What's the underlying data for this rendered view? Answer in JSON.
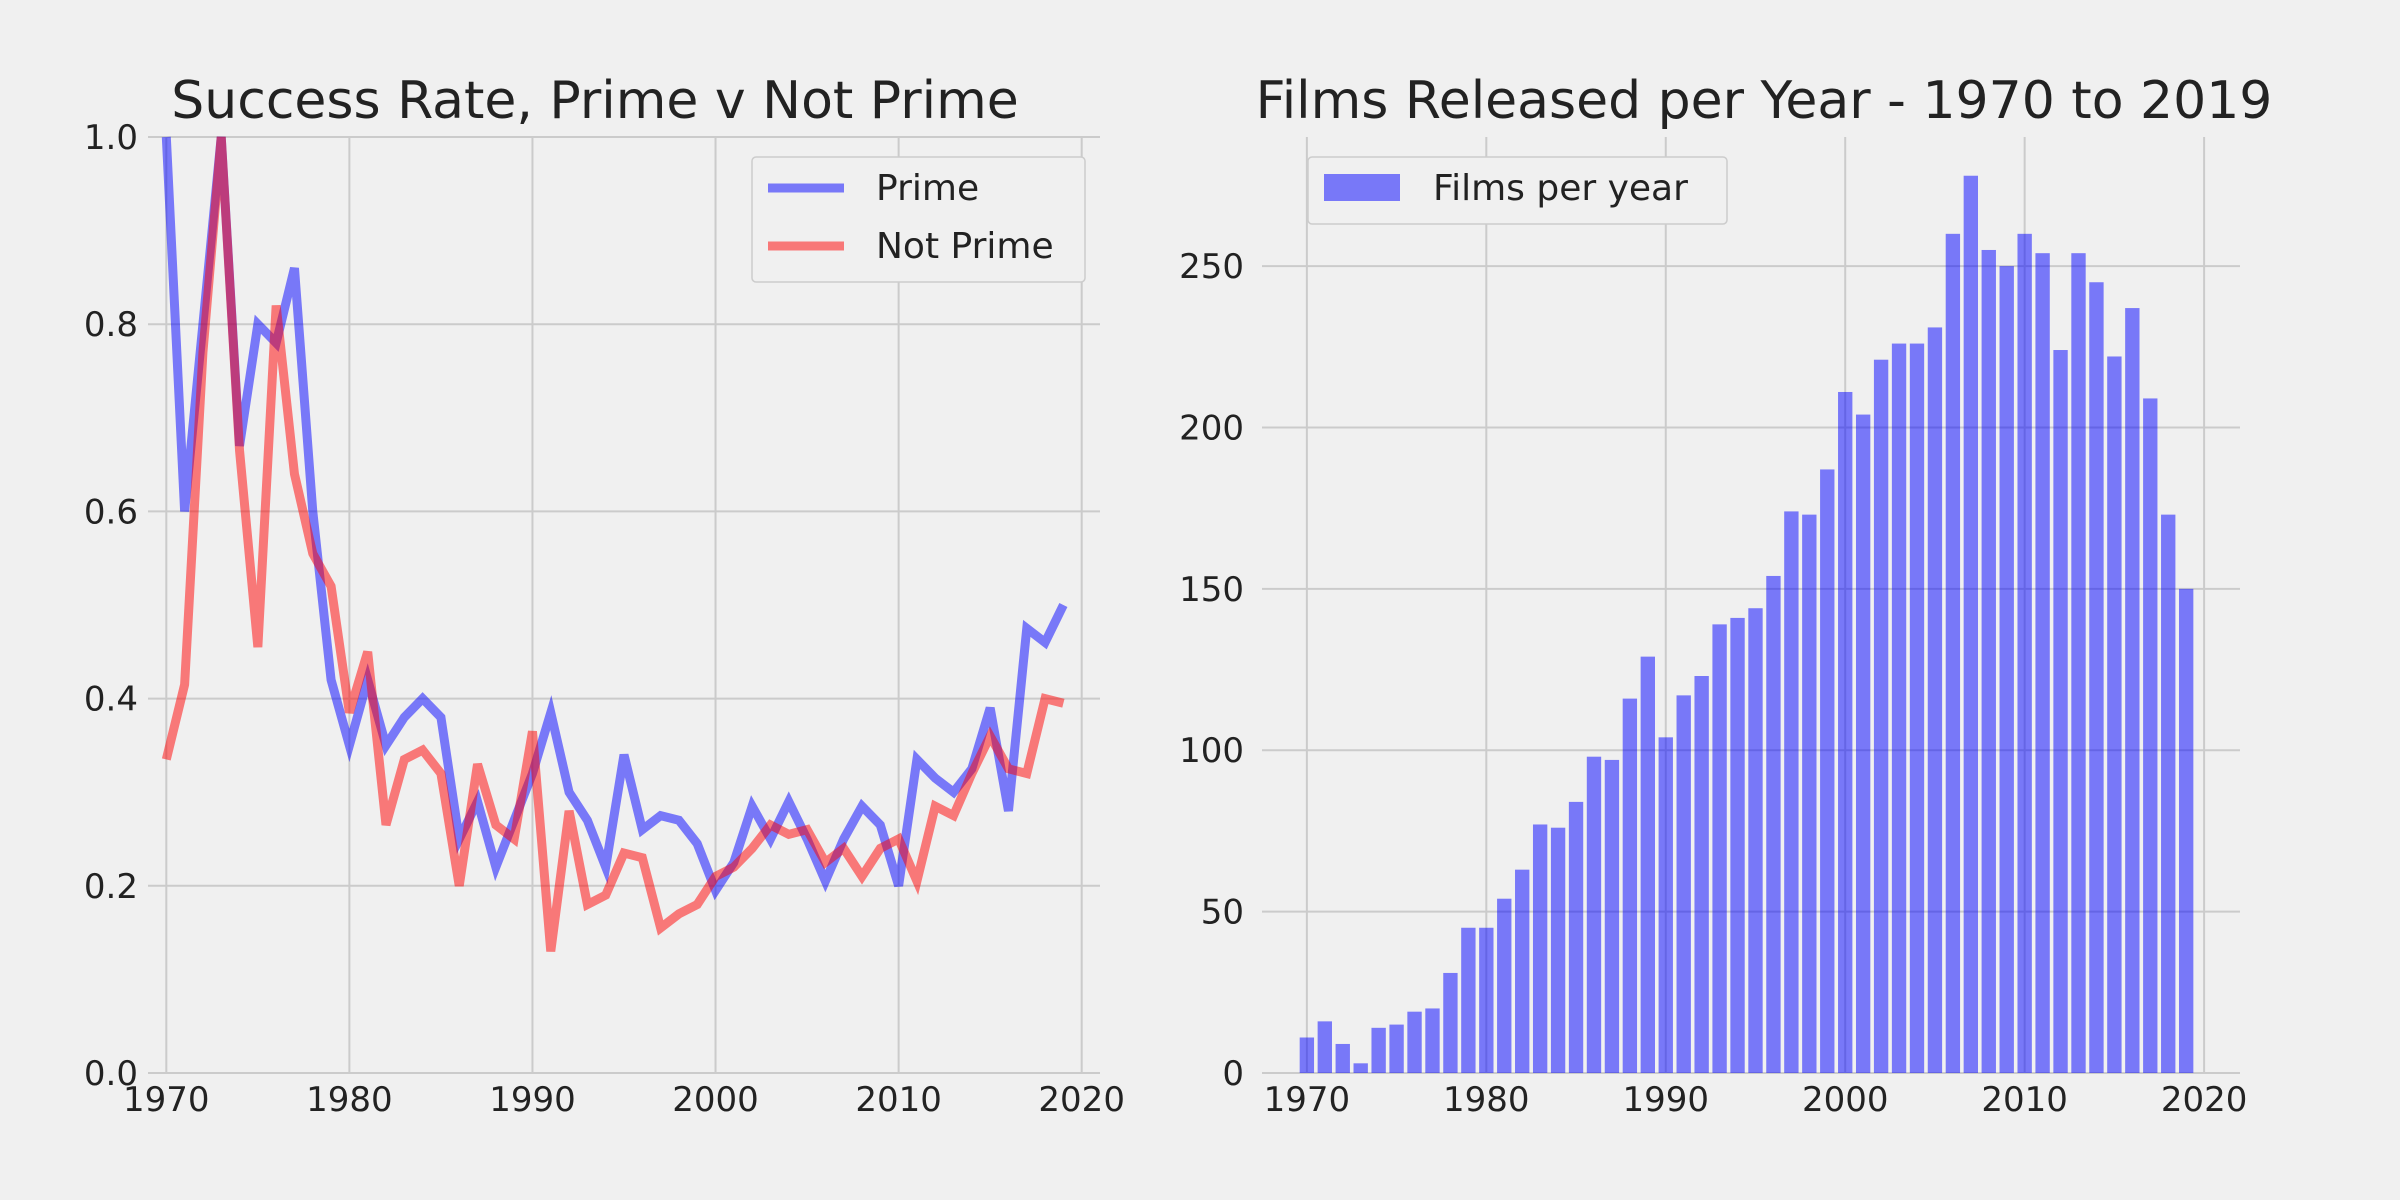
{
  "chart_data": [
    {
      "type": "line",
      "title": "Success Rate, Prime v Not Prime",
      "xlim": [
        1969,
        2021
      ],
      "ylim": [
        0.0,
        1.0
      ],
      "x_ticks": [
        1970,
        1980,
        1990,
        2000,
        2010,
        2020
      ],
      "y_ticks": [
        0.0,
        0.2,
        0.4,
        0.6,
        0.8,
        1.0
      ],
      "y_tick_labels": [
        "0.0",
        "0.2",
        "0.4",
        "0.6",
        "0.8",
        "1.0"
      ],
      "grid": true,
      "legend_position": "top-right",
      "x": [
        1970,
        1971,
        1972,
        1973,
        1974,
        1975,
        1976,
        1977,
        1978,
        1979,
        1980,
        1981,
        1982,
        1983,
        1984,
        1985,
        1986,
        1987,
        1988,
        1989,
        1990,
        1991,
        1992,
        1993,
        1994,
        1995,
        1996,
        1997,
        1998,
        1999,
        2000,
        2001,
        2002,
        2003,
        2004,
        2005,
        2006,
        2007,
        2008,
        2009,
        2010,
        2011,
        2012,
        2013,
        2014,
        2015,
        2016,
        2017,
        2018,
        2019
      ],
      "series": [
        {
          "name": "Prime",
          "color": "#0000ff",
          "values": [
            1.0,
            0.6,
            0.8,
            1.0,
            0.67,
            0.8,
            0.78,
            0.86,
            0.6,
            0.42,
            0.35,
            0.42,
            0.35,
            0.38,
            0.4,
            0.38,
            0.25,
            0.29,
            0.22,
            0.27,
            0.32,
            0.385,
            0.3,
            0.27,
            0.22,
            0.34,
            0.26,
            0.275,
            0.27,
            0.245,
            0.195,
            0.225,
            0.285,
            0.25,
            0.29,
            0.25,
            0.205,
            0.25,
            0.285,
            0.265,
            0.2,
            0.335,
            0.315,
            0.3,
            0.325,
            0.39,
            0.28,
            0.475,
            0.46,
            0.5
          ]
        },
        {
          "name": "Not Prime",
          "color": "#ff0000",
          "values": [
            0.335,
            0.415,
            0.77,
            1.0,
            0.665,
            0.455,
            0.82,
            0.64,
            0.555,
            0.52,
            0.385,
            0.45,
            0.265,
            0.335,
            0.345,
            0.32,
            0.2,
            0.33,
            0.265,
            0.25,
            0.365,
            0.13,
            0.28,
            0.18,
            0.19,
            0.235,
            0.23,
            0.155,
            0.17,
            0.18,
            0.21,
            0.22,
            0.24,
            0.265,
            0.255,
            0.26,
            0.225,
            0.24,
            0.21,
            0.24,
            0.25,
            0.205,
            0.285,
            0.275,
            0.32,
            0.36,
            0.325,
            0.32,
            0.4,
            0.395
          ]
        }
      ]
    },
    {
      "type": "bar",
      "title": "Films Released per Year - 1970 to 2019",
      "xlim": [
        1967.5,
        2022
      ],
      "ylim": [
        0,
        290
      ],
      "x_ticks": [
        1970,
        1980,
        1990,
        2000,
        2010,
        2020
      ],
      "y_ticks": [
        0,
        50,
        100,
        150,
        200,
        250
      ],
      "grid": true,
      "legend_position": "top-left",
      "x": [
        1970,
        1971,
        1972,
        1973,
        1974,
        1975,
        1976,
        1977,
        1978,
        1979,
        1980,
        1981,
        1982,
        1983,
        1984,
        1985,
        1986,
        1987,
        1988,
        1989,
        1990,
        1991,
        1992,
        1993,
        1994,
        1995,
        1996,
        1997,
        1998,
        1999,
        2000,
        2001,
        2002,
        2003,
        2004,
        2005,
        2006,
        2007,
        2008,
        2009,
        2010,
        2011,
        2012,
        2013,
        2014,
        2015,
        2016,
        2017,
        2018,
        2019
      ],
      "series": [
        {
          "name": "Films per year",
          "color": "#0000ff",
          "values": [
            11,
            16,
            9,
            3,
            14,
            15,
            19,
            20,
            31,
            45,
            45,
            54,
            63,
            77,
            76,
            84,
            98,
            97,
            116,
            129,
            104,
            117,
            123,
            139,
            141,
            144,
            154,
            174,
            173,
            187,
            211,
            204,
            221,
            226,
            226,
            231,
            260,
            278,
            255,
            250,
            260,
            254,
            224,
            254,
            245,
            222,
            237,
            209,
            173,
            150
          ]
        }
      ]
    }
  ]
}
